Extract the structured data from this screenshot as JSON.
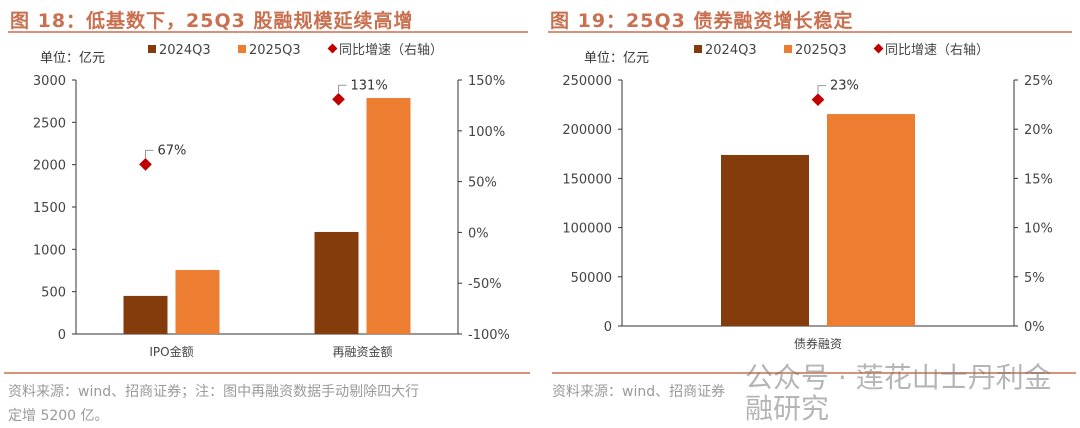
{
  "colors": {
    "s2024": "#843C0C",
    "s2025": "#ED7D31",
    "growth": "#C00000",
    "title": "#C8704F"
  },
  "chart_data": [
    {
      "type": "bar",
      "title": "图 18：低基数下，25Q3 股融规模延续高增",
      "unit": "单位：亿元",
      "categories": [
        "IPO金额",
        "再融资金额"
      ],
      "series": [
        {
          "name": "2024Q3",
          "values": [
            450,
            1205
          ]
        },
        {
          "name": "2025Q3",
          "values": [
            756,
            2787
          ]
        },
        {
          "name": "同比增速（右轴）",
          "type": "scatter",
          "axis": "right",
          "values": [
            67,
            131
          ],
          "labels": [
            "67%",
            "131%"
          ]
        }
      ],
      "ylim": [
        0,
        3000
      ],
      "yticks": [
        "0",
        "500",
        "1000",
        "1500",
        "2000",
        "2500",
        "3000"
      ],
      "y2lim": [
        -100,
        150
      ],
      "y2ticks": [
        "-100%",
        "-50%",
        "0%",
        "50%",
        "100%",
        "150%"
      ],
      "legend": "top",
      "grid": false
    },
    {
      "type": "bar",
      "title": "图 19：25Q3 债券融资增长稳定",
      "unit": "单位：亿元",
      "categories": [
        "债券融资"
      ],
      "series": [
        {
          "name": "2024Q3",
          "values": [
            173800
          ]
        },
        {
          "name": "2025Q3",
          "values": [
            215400
          ]
        },
        {
          "name": "同比增速（右轴）",
          "type": "scatter",
          "axis": "right",
          "values": [
            23
          ],
          "labels": [
            "23%"
          ]
        }
      ],
      "ylim": [
        0,
        250000
      ],
      "yticks": [
        "0",
        "50000",
        "100000",
        "150000",
        "200000",
        "250000"
      ],
      "y2lim": [
        0,
        25
      ],
      "y2ticks": [
        "0%",
        "5%",
        "10%",
        "15%",
        "20%",
        "25%"
      ],
      "legend": "top",
      "grid": false
    }
  ],
  "notes": {
    "left_line1": "资料来源：wind、招商证券；注：图中再融资数据手动剔除四大行",
    "left_line2": "定增 5200 亿。",
    "right": "资料来源：wind、招商证券",
    "watermark": "公众号 · 莲花山士丹利金融研究"
  }
}
